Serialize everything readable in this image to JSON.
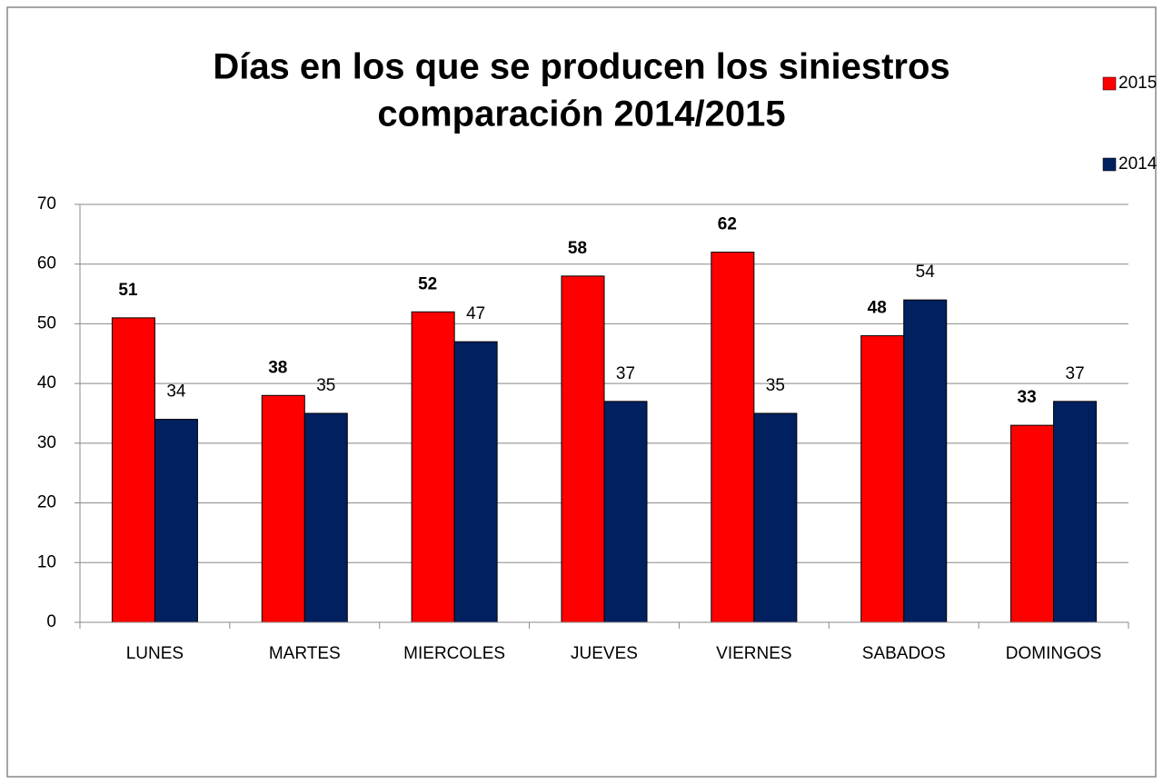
{
  "chart_data": {
    "type": "bar",
    "title": [
      "Días en los que se producen los siniestros",
      "comparación 2014/2015"
    ],
    "categories": [
      "LUNES",
      "MARTES",
      "MIERCOLES",
      "JUEVES",
      "VIERNES",
      "SABADOS",
      "DOMINGOS"
    ],
    "series": [
      {
        "name": "2015",
        "color": "#ff0000",
        "values": [
          51,
          38,
          52,
          58,
          62,
          48,
          33
        ]
      },
      {
        "name": "2014",
        "color": "#002060",
        "values": [
          34,
          35,
          47,
          37,
          35,
          54,
          37
        ]
      }
    ],
    "ylim": [
      0,
      70
    ],
    "yticks": [
      0,
      10,
      20,
      30,
      40,
      50,
      60,
      70
    ],
    "grid": true,
    "legend": "top-right"
  }
}
